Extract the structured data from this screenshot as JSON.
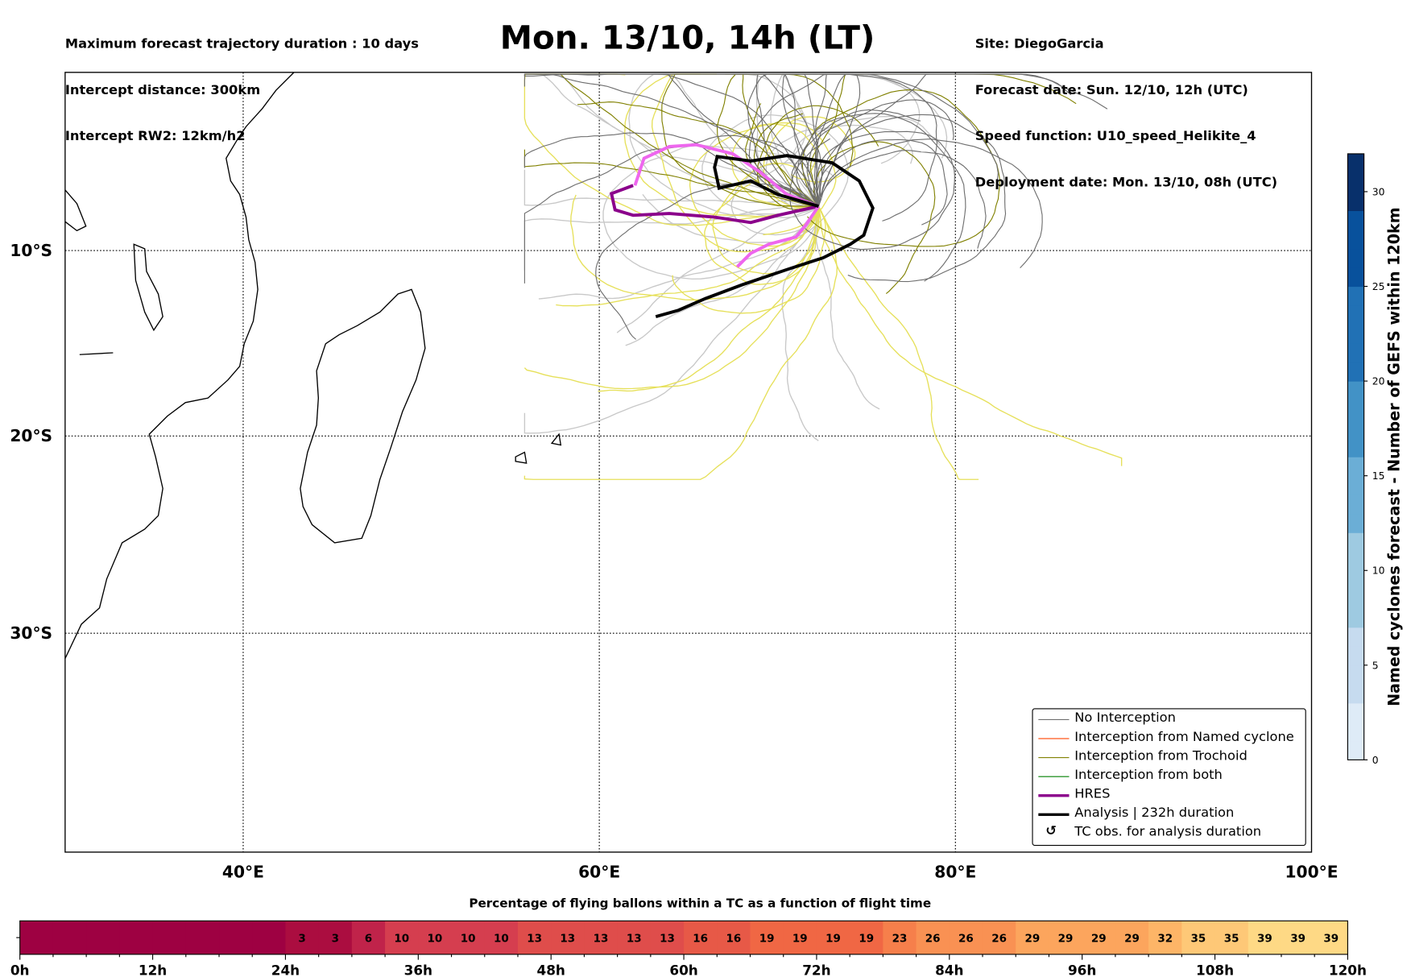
{
  "header": {
    "left": [
      "Maximum forecast trajectory duration : 10 days",
      "Intercept distance: 300km",
      "Intercept RW2: 12km/h2"
    ],
    "title": "Mon. 13/10, 14h (LT)",
    "right": [
      "Site: DiegoGarcia",
      "Forecast date: Sun. 12/10, 12h (UTC)",
      "Speed function: U10_speed_Helikite_4",
      "Deployment date: Mon. 13/10, 08h (UTC)"
    ]
  },
  "map": {
    "lon_ticks": [
      "40°E",
      "60°E",
      "80°E",
      "100°E"
    ],
    "lat_ticks": [
      "10°S",
      "20°S",
      "30°S"
    ],
    "lon_range": [
      30,
      100
    ],
    "lat_range": [
      -0.5,
      -39
    ]
  },
  "legend": [
    {
      "label": "No Interception",
      "color": "#6e6e6e"
    },
    {
      "label": "Interception from Named cyclone",
      "color": "#ff4500"
    },
    {
      "label": "Interception from Trochoid",
      "color": "#808000"
    },
    {
      "label": "Interception from both",
      "color": "#008000"
    },
    {
      "label": "HRES",
      "color": "#8b008b"
    },
    {
      "label": "Analysis | 232h duration",
      "color": "#000000"
    },
    {
      "label": "TC obs. for analysis duration",
      "symbol": "↺"
    }
  ],
  "colorbar": {
    "label": "Named cyclones forecast - Number of GEFS within 120km",
    "ticks": [
      "0",
      "5",
      "10",
      "15",
      "20",
      "25",
      "30"
    ],
    "range": [
      0,
      32
    ]
  },
  "chart_data": {
    "type": "heatmap",
    "title": "Percentage of flying ballons within a TC as a function of flight time",
    "xlabel": "flight time",
    "x_ticks": [
      "0h",
      "12h",
      "24h",
      "36h",
      "48h",
      "60h",
      "72h",
      "84h",
      "96h",
      "108h",
      "120h"
    ],
    "bin_hours": 3,
    "values": [
      0,
      0,
      0,
      0,
      0,
      0,
      0,
      0,
      3,
      3,
      6,
      10,
      10,
      10,
      10,
      13,
      13,
      13,
      13,
      13,
      16,
      16,
      19,
      19,
      19,
      19,
      23,
      26,
      26,
      26,
      29,
      29,
      29,
      29,
      32,
      35,
      35,
      39,
      39,
      39
    ]
  }
}
